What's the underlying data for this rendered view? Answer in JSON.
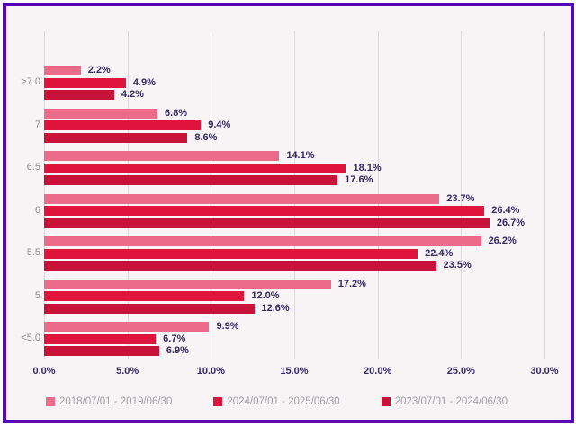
{
  "frame": {
    "border_color": "#5508b4",
    "background_color": "#f8f4f5"
  },
  "chart_data": {
    "type": "bar",
    "orientation": "horizontal",
    "title": "",
    "xlabel": "",
    "ylabel": "",
    "xlim": [
      0,
      30
    ],
    "grid": true,
    "legend_position": "bottom",
    "categories": [
      ">7.0",
      "7",
      "6.5",
      "6",
      "5.5",
      "5",
      "<5.0"
    ],
    "series": [
      {
        "name": "2018/07/01 - 2019/06/30",
        "color": "#ec6a8a",
        "values": [
          2.2,
          6.8,
          14.1,
          23.7,
          26.2,
          17.2,
          9.9
        ],
        "labels": [
          "2.2%",
          "6.8%",
          "14.1%",
          "23.7%",
          "26.2%",
          "17.2%",
          "9.9%"
        ]
      },
      {
        "name": "2024/07/01 - 2025/06/30",
        "color": "#e0143c",
        "values": [
          4.9,
          9.4,
          18.1,
          26.4,
          22.4,
          12.0,
          6.7
        ],
        "labels": [
          "4.9%",
          "9.4%",
          "18.1%",
          "26.4%",
          "22.4%",
          "12.0%",
          "6.7%"
        ]
      },
      {
        "name": "2023/07/01 - 2024/06/30",
        "color": "#c91239",
        "values": [
          4.2,
          8.6,
          17.6,
          26.7,
          23.5,
          12.6,
          6.9
        ],
        "labels": [
          "4.2%",
          "8.6%",
          "17.6%",
          "26.7%",
          "23.5%",
          "12.6%",
          "6.9%"
        ]
      }
    ],
    "x_ticks": [
      "0.0%",
      "5.0%",
      "10.0%",
      "15.0%",
      "20.0%",
      "25.0%",
      "30.0%"
    ],
    "colors": {
      "value_label": "#322a63",
      "axis_tick_label": "#322a63",
      "category_label": "#8f8d90",
      "legend_text": "#a29ea4",
      "gridline": "#ddd8da"
    }
  }
}
